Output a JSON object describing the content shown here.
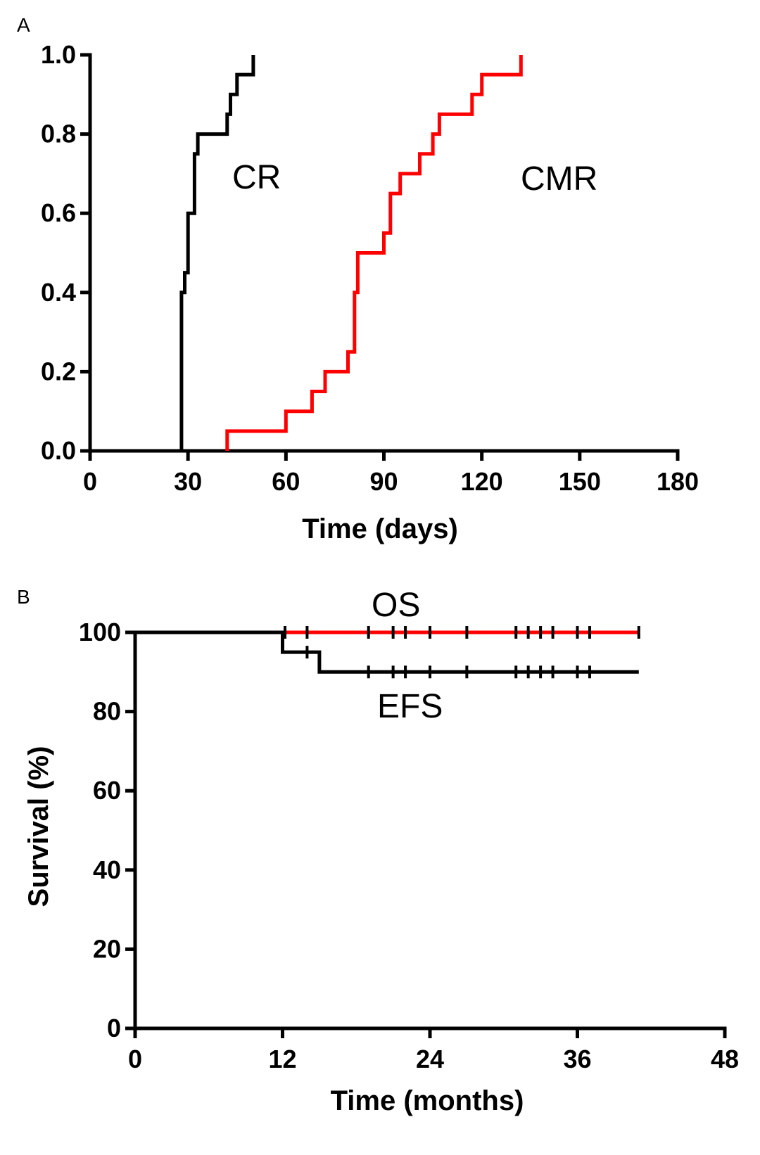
{
  "chart_data": [
    {
      "panel": "A",
      "type": "line",
      "step": true,
      "xlabel": "Time (days)",
      "ylabel": "",
      "xlim": [
        0,
        180
      ],
      "ylim": [
        0,
        1.0
      ],
      "xticks": [
        0,
        30,
        60,
        90,
        120,
        150,
        180
      ],
      "xtick_labels": [
        "0",
        "30",
        "60",
        "90",
        "120",
        "150",
        "180"
      ],
      "yticks": [
        0,
        0.2,
        0.4,
        0.6,
        0.8,
        1.0
      ],
      "ytick_labels": [
        "0.0",
        "0.2",
        "0.4",
        "0.6",
        "0.8",
        "1.0"
      ],
      "series": [
        {
          "label": "CR",
          "color": "#000000",
          "x": [
            28,
            28,
            29,
            29,
            30,
            30,
            32,
            32,
            33,
            33,
            42,
            42,
            43,
            43,
            45,
            45,
            50,
            50
          ],
          "y": [
            0,
            0.4,
            0.4,
            0.45,
            0.45,
            0.6,
            0.6,
            0.75,
            0.75,
            0.8,
            0.8,
            0.85,
            0.85,
            0.9,
            0.9,
            0.95,
            0.95,
            1.0
          ]
        },
        {
          "label": "CMR",
          "color": "#ff0000",
          "x": [
            42,
            42,
            60,
            60,
            68,
            68,
            72,
            72,
            79,
            79,
            81,
            81,
            82,
            82,
            90,
            90,
            92,
            92,
            95,
            95,
            101,
            101,
            105,
            105,
            107,
            107,
            117,
            117,
            120,
            120,
            132,
            132
          ],
          "y": [
            0,
            0.05,
            0.05,
            0.1,
            0.1,
            0.15,
            0.15,
            0.2,
            0.2,
            0.25,
            0.25,
            0.4,
            0.4,
            0.5,
            0.5,
            0.55,
            0.55,
            0.65,
            0.65,
            0.7,
            0.7,
            0.75,
            0.75,
            0.8,
            0.8,
            0.85,
            0.85,
            0.9,
            0.9,
            0.95,
            0.95,
            1.0
          ]
        }
      ]
    },
    {
      "panel": "B",
      "type": "line",
      "step": true,
      "xlabel": "Time (months)",
      "ylabel": "Survival (%)",
      "xlim": [
        0,
        48
      ],
      "ylim": [
        0,
        100
      ],
      "xticks": [
        0,
        12,
        24,
        36,
        48
      ],
      "xtick_labels": [
        "0",
        "12",
        "24",
        "36",
        "48"
      ],
      "yticks": [
        0,
        20,
        40,
        60,
        80,
        100
      ],
      "ytick_labels": [
        "0",
        "20",
        "40",
        "60",
        "80",
        "100"
      ],
      "series": [
        {
          "label": "OS",
          "color": "#ff0000",
          "x": [
            0,
            41
          ],
          "y": [
            100,
            100
          ],
          "censored_x": [
            12.2,
            14,
            19,
            21,
            22,
            24,
            27,
            31,
            32,
            33,
            34,
            36,
            37,
            41
          ]
        },
        {
          "label": "EFS",
          "color": "#000000",
          "x": [
            0,
            12,
            12,
            15,
            15,
            41
          ],
          "y": [
            100,
            100,
            95,
            95,
            90,
            90
          ],
          "censored_x": [
            14,
            19,
            21,
            22,
            24,
            27,
            31,
            32,
            33,
            34,
            36,
            37
          ]
        }
      ]
    }
  ]
}
